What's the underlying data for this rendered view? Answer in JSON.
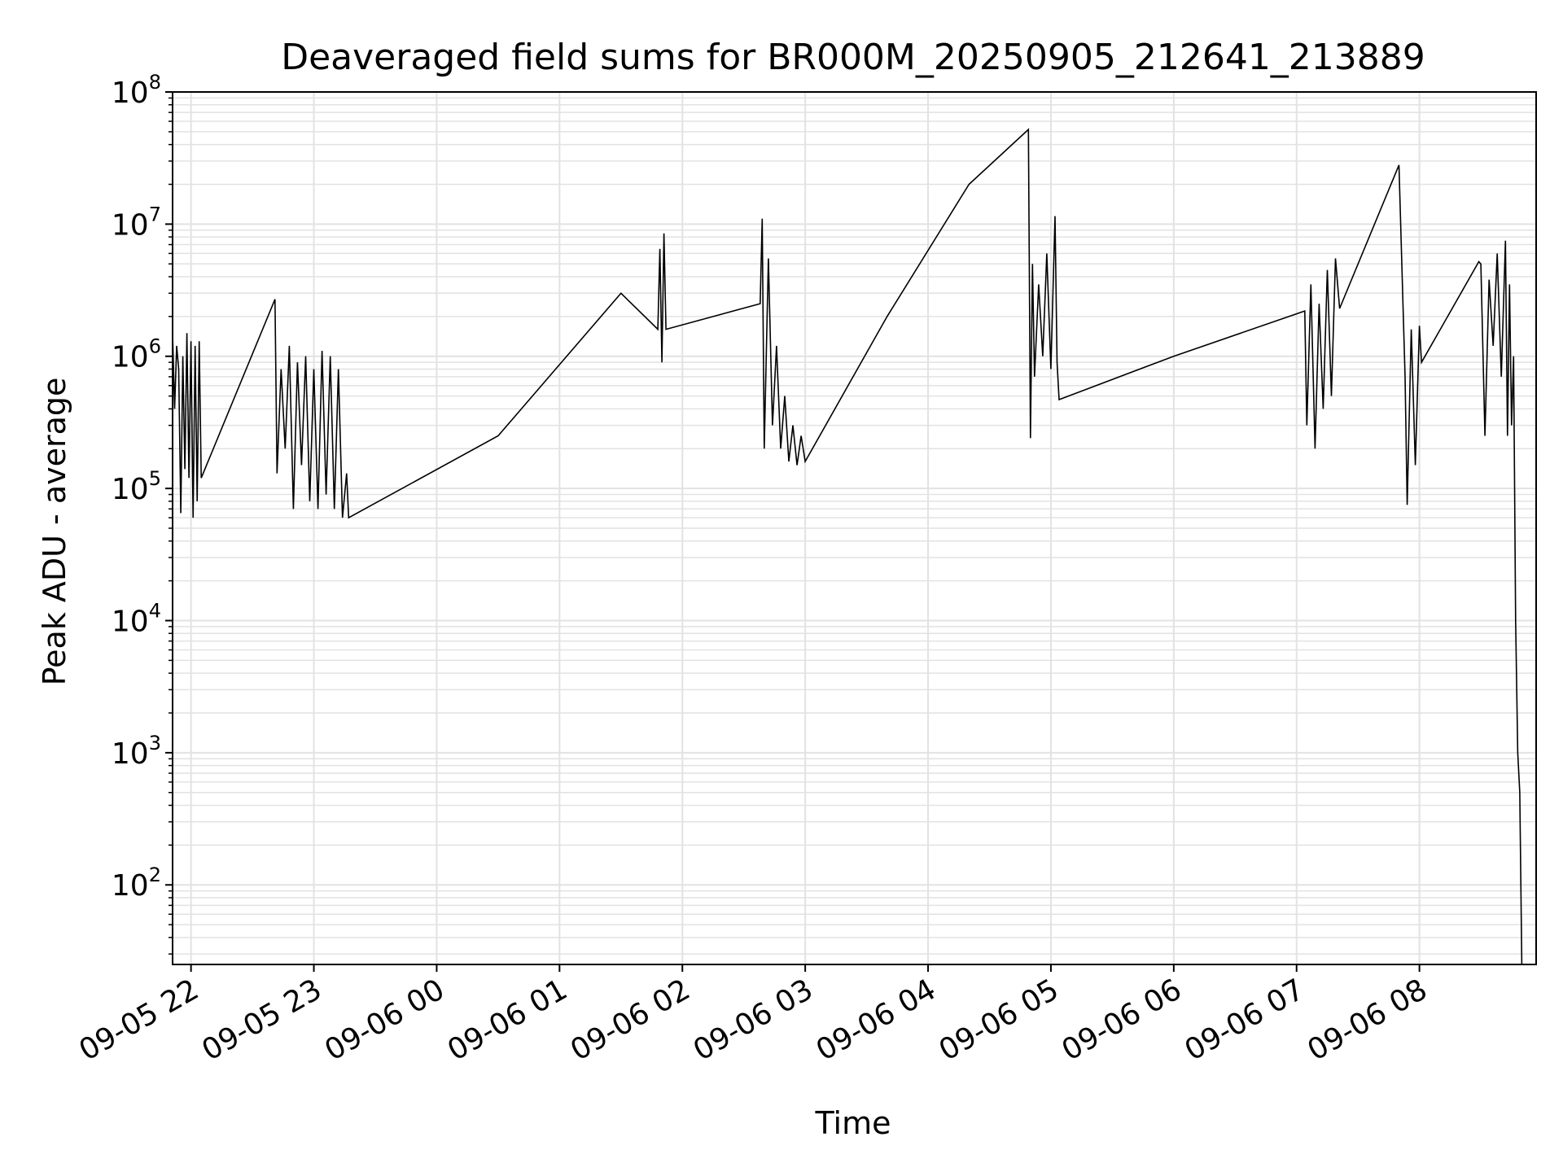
{
  "chart_data": {
    "type": "line",
    "title": "Deaveraged field sums for BR000M_20250905_212641_213889",
    "xlabel": "Time",
    "ylabel": "Peak ADU - average",
    "yscale": "log",
    "ylim": [
      25,
      100000000
    ],
    "xlim": [
      "2025-09-05 21:51",
      "2025-09-06 08:57"
    ],
    "grid": true,
    "line_color": "#000000",
    "grid_color": "#e2e2e2",
    "x_ticks": [
      {
        "label": "09-05 22",
        "t": "2025-09-05 22:00"
      },
      {
        "label": "09-05 23",
        "t": "2025-09-05 23:00"
      },
      {
        "label": "09-06 00",
        "t": "2025-09-06 00:00"
      },
      {
        "label": "09-06 01",
        "t": "2025-09-06 01:00"
      },
      {
        "label": "09-06 02",
        "t": "2025-09-06 02:00"
      },
      {
        "label": "09-06 03",
        "t": "2025-09-06 03:00"
      },
      {
        "label": "09-06 04",
        "t": "2025-09-06 04:00"
      },
      {
        "label": "09-06 05",
        "t": "2025-09-06 05:00"
      },
      {
        "label": "09-06 06",
        "t": "2025-09-06 06:00"
      },
      {
        "label": "09-06 07",
        "t": "2025-09-06 07:00"
      },
      {
        "label": "09-06 08",
        "t": "2025-09-06 08:00"
      }
    ],
    "y_ticks": [
      {
        "base": "10",
        "exp": "2",
        "value": 100
      },
      {
        "base": "10",
        "exp": "3",
        "value": 1000
      },
      {
        "base": "10",
        "exp": "4",
        "value": 10000
      },
      {
        "base": "10",
        "exp": "5",
        "value": 100000
      },
      {
        "base": "10",
        "exp": "6",
        "value": 1000000
      },
      {
        "base": "10",
        "exp": "7",
        "value": 10000000
      },
      {
        "base": "10",
        "exp": "8",
        "value": 100000000
      }
    ],
    "series": [
      {
        "x": [
          "2025-09-05 21:51",
          "2025-09-05 21:52",
          "2025-09-05 21:53",
          "2025-09-05 21:54",
          "2025-09-05 21:55",
          "2025-09-05 21:56",
          "2025-09-05 21:57",
          "2025-09-05 21:58",
          "2025-09-05 21:59",
          "2025-09-05 22:00",
          "2025-09-05 22:01",
          "2025-09-05 22:02",
          "2025-09-05 22:03",
          "2025-09-05 22:04",
          "2025-09-05 22:05",
          "2025-09-05 22:41",
          "2025-09-05 22:42",
          "2025-09-05 22:44",
          "2025-09-05 22:46",
          "2025-09-05 22:48",
          "2025-09-05 22:50",
          "2025-09-05 22:52",
          "2025-09-05 22:54",
          "2025-09-05 22:56",
          "2025-09-05 22:58",
          "2025-09-05 23:00",
          "2025-09-05 23:02",
          "2025-09-05 23:04",
          "2025-09-05 23:06",
          "2025-09-05 23:08",
          "2025-09-05 23:10",
          "2025-09-05 23:12",
          "2025-09-05 23:14",
          "2025-09-05 23:16",
          "2025-09-05 23:17",
          "2025-09-06 00:30",
          "2025-09-06 01:30",
          "2025-09-06 01:48",
          "2025-09-06 01:49",
          "2025-09-06 01:50",
          "2025-09-06 01:51",
          "2025-09-06 01:52",
          "2025-09-06 02:38",
          "2025-09-06 02:39",
          "2025-09-06 02:40",
          "2025-09-06 02:42",
          "2025-09-06 02:44",
          "2025-09-06 02:46",
          "2025-09-06 02:48",
          "2025-09-06 02:50",
          "2025-09-06 02:52",
          "2025-09-06 02:54",
          "2025-09-06 02:56",
          "2025-09-06 02:58",
          "2025-09-06 03:00",
          "2025-09-06 03:40",
          "2025-09-06 04:20",
          "2025-09-06 04:49",
          "2025-09-06 04:50",
          "2025-09-06 04:51",
          "2025-09-06 04:52",
          "2025-09-06 04:54",
          "2025-09-06 04:56",
          "2025-09-06 04:58",
          "2025-09-06 05:00",
          "2025-09-06 05:02",
          "2025-09-06 05:03",
          "2025-09-06 05:04",
          "2025-09-06 06:00",
          "2025-09-06 07:04",
          "2025-09-06 07:05",
          "2025-09-06 07:07",
          "2025-09-06 07:09",
          "2025-09-06 07:11",
          "2025-09-06 07:13",
          "2025-09-06 07:15",
          "2025-09-06 07:17",
          "2025-09-06 07:19",
          "2025-09-06 07:21",
          "2025-09-06 07:50",
          "2025-09-06 07:53",
          "2025-09-06 07:54",
          "2025-09-06 07:56",
          "2025-09-06 07:58",
          "2025-09-06 08:00",
          "2025-09-06 08:01",
          "2025-09-06 08:29",
          "2025-09-06 08:30",
          "2025-09-06 08:32",
          "2025-09-06 08:34",
          "2025-09-06 08:36",
          "2025-09-06 08:38",
          "2025-09-06 08:40",
          "2025-09-06 08:42",
          "2025-09-06 08:43",
          "2025-09-06 08:44",
          "2025-09-06 08:45",
          "2025-09-06 08:46",
          "2025-09-06 08:47",
          "2025-09-06 08:48",
          "2025-09-06 08:49",
          "2025-09-06 08:50"
        ],
        "y": [
          1500000,
          400000,
          1200000,
          800000,
          65000,
          1000000,
          140000,
          1500000,
          120000,
          1300000,
          60000,
          1200000,
          80000,
          1300000,
          120000,
          2700000,
          130000,
          800000,
          200000,
          1200000,
          70000,
          900000,
          150000,
          1000000,
          80000,
          800000,
          70000,
          1100000,
          90000,
          1000000,
          70000,
          800000,
          60000,
          130000,
          60000,
          250000,
          3000000,
          1600000,
          6500000,
          900000,
          8500000,
          1600000,
          2500000,
          11000000,
          200000,
          5500000,
          300000,
          1200000,
          200000,
          500000,
          160000,
          300000,
          150000,
          250000,
          160000,
          2000000,
          20000000,
          52000000,
          240000,
          5000000,
          700000,
          3500000,
          1000000,
          6000000,
          800000,
          11500000,
          900000,
          470000,
          1000000,
          2200000,
          300000,
          3500000,
          200000,
          2500000,
          400000,
          4500000,
          500000,
          5500000,
          2300000,
          28000000,
          700000,
          75000,
          1600000,
          150000,
          1700000,
          900000,
          5200000,
          5000000,
          250000,
          3800000,
          1200000,
          6000000,
          700000,
          7500000,
          250000,
          3500000,
          300000,
          1000000,
          10000,
          1000,
          500,
          25
        ]
      }
    ]
  }
}
